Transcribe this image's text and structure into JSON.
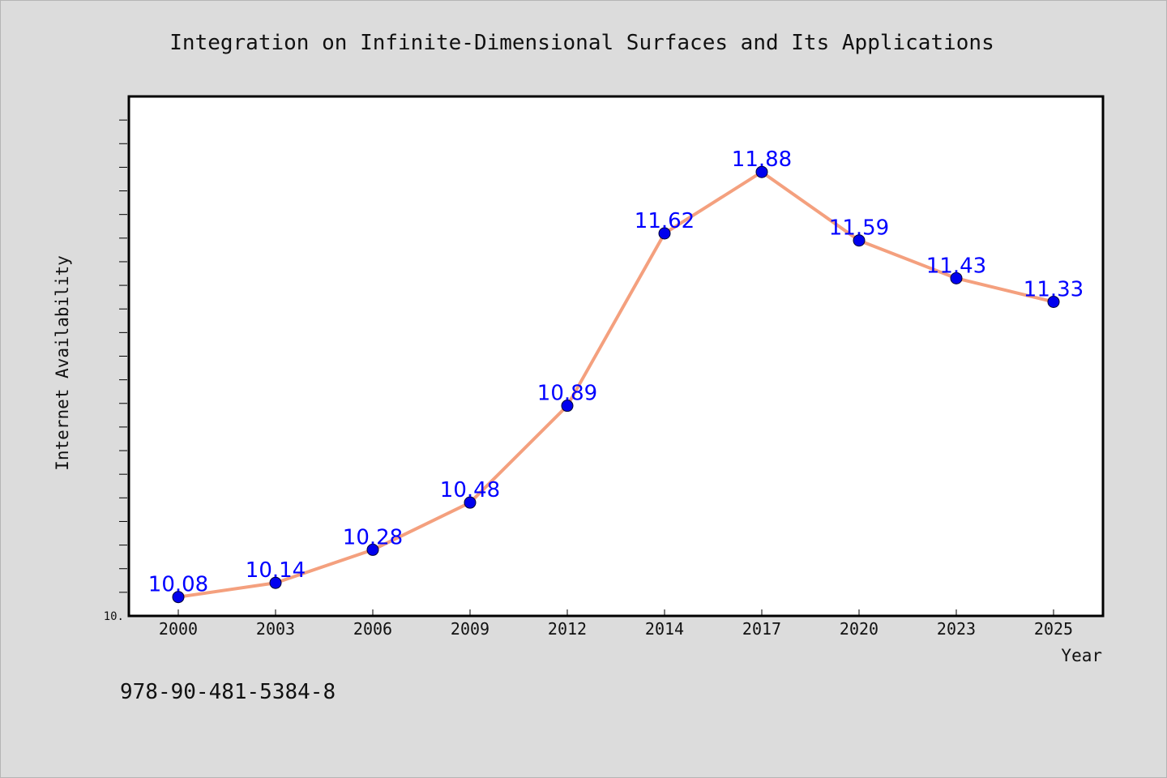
{
  "chart_data": {
    "type": "line",
    "title": "Integration on Infinite-Dimensional Surfaces and Its Applications",
    "xlabel": "Year",
    "ylabel": "Internet Availability",
    "categories": [
      "2000",
      "2003",
      "2006",
      "2009",
      "2012",
      "2014",
      "2017",
      "2020",
      "2023",
      "2025"
    ],
    "series": [
      {
        "values": [
          10.08,
          10.14,
          10.28,
          10.48,
          10.89,
          11.62,
          11.88,
          11.59,
          11.43,
          11.33
        ],
        "labels": [
          "10.08",
          "10.14",
          "10.28",
          "10.48",
          "10.89",
          "11.62",
          "11.88",
          "11.59",
          "11.43",
          "11.33"
        ],
        "line_color": "#f4a07e",
        "marker_color": "#0000ee"
      }
    ],
    "ylim": [
      10.0,
      12.2
    ],
    "y_tick_label": "10.",
    "grid": false,
    "legend": "none",
    "label_color": "#0000ff"
  },
  "footer": {
    "isbn": "978-90-481-5384-8"
  }
}
